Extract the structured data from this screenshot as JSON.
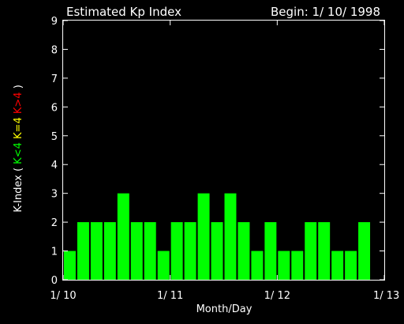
{
  "header": {
    "title": "Estimated Kp Index",
    "begin": "Begin: 1/ 10/ 1998"
  },
  "ylabel_parts": [
    {
      "text": "K-Index ( ",
      "color": "#ffffff"
    },
    {
      "text": "K<4",
      "color": "#00ff00"
    },
    {
      "text": "  ",
      "color": "#ffffff"
    },
    {
      "text": "K=4",
      "color": "#ffff00"
    },
    {
      "text": "  ",
      "color": "#ffffff"
    },
    {
      "text": "K>4",
      "color": "#ff0000"
    },
    {
      "text": " )",
      "color": "#ffffff"
    }
  ],
  "colors": {
    "background": "#000000",
    "axis": "#ffffff",
    "bar_low": "#00ff00",
    "bar_equal": "#ffff00",
    "bar_high": "#ff0000"
  },
  "chart_data": {
    "type": "bar",
    "title": "Estimated Kp Index",
    "xlabel": "Month/Day",
    "ylabel": "K-Index ( K<4  K=4  K>4 )",
    "ylim": [
      0,
      9
    ],
    "yticks": [
      0,
      1,
      2,
      3,
      4,
      5,
      6,
      7,
      8,
      9
    ],
    "xlim": [
      0,
      24
    ],
    "xtick_positions": [
      0,
      8,
      16,
      24
    ],
    "xtick_labels": [
      "1/ 10",
      "1/ 11",
      "1/ 12",
      "1/ 13"
    ],
    "values": [
      1,
      2,
      2,
      2,
      3,
      2,
      2,
      1,
      2,
      2,
      3,
      2,
      3,
      2,
      1,
      2,
      1,
      1,
      2,
      2,
      1,
      1,
      2
    ],
    "grid": false,
    "legend": "none"
  }
}
